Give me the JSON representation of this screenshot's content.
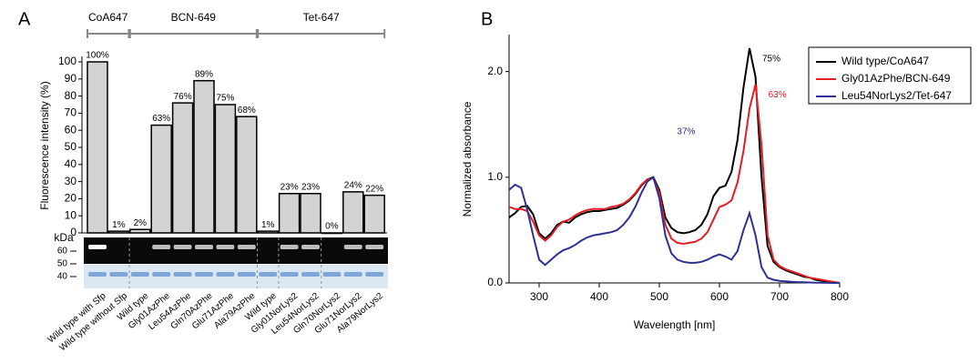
{
  "panels": [
    "A",
    "B"
  ],
  "chart_data": [
    {
      "type": "bar",
      "ylabel": "Fluorescence intensity (%)",
      "categories": [
        "Wild type with Sfp",
        "Wild type without Sfp",
        "Wild type",
        "Gly01AzPhe",
        "Leu54AzPhe",
        "Gln70AzPhe",
        "Glu71AzPhe",
        "Ala79AzPhe",
        "Wild type",
        "Gly01NorLys2",
        "Leu54NorLys2",
        "Gln70NorLys2",
        "Glu71NorLys2",
        "Ala79NorLys2"
      ],
      "values": [
        100,
        1,
        2,
        63,
        76,
        89,
        75,
        68,
        1,
        23,
        23,
        0,
        24,
        22
      ],
      "value_labels": [
        "100%",
        "1%",
        "2%",
        "63%",
        "76%",
        "89%",
        "75%",
        "68%",
        "1%",
        "23%",
        "23%",
        "0%",
        "24%",
        "22%"
      ],
      "color": "#d3d3d3",
      "groups": [
        {
          "label": "CoA647",
          "start": 0,
          "end": 1
        },
        {
          "label": "BCN-649",
          "start": 2,
          "end": 7
        },
        {
          "label": "Tet-647",
          "start": 8,
          "end": 13
        }
      ],
      "ylim": [
        0,
        100
      ],
      "yticks": [
        0,
        10,
        20,
        30,
        40,
        50,
        60,
        70,
        80,
        90,
        100
      ],
      "gel_unit": "kDa",
      "gel_markers": [
        60,
        50,
        40
      ]
    },
    {
      "type": "line",
      "xlabel": "Wavelength [nm]",
      "ylabel": "Normalized absorbance",
      "x": [
        250,
        260,
        270,
        280,
        290,
        300,
        310,
        320,
        330,
        340,
        350,
        360,
        370,
        380,
        390,
        400,
        410,
        420,
        430,
        440,
        450,
        460,
        470,
        480,
        490,
        500,
        510,
        520,
        530,
        540,
        550,
        560,
        570,
        580,
        590,
        600,
        610,
        620,
        630,
        640,
        650,
        660,
        670,
        680,
        690,
        700,
        710,
        720,
        730,
        740,
        750,
        760,
        770,
        780,
        790,
        800
      ],
      "series": [
        {
          "name": "Wild type/CoA647",
          "color": "#000000",
          "peak_label": "75%",
          "values": [
            0.62,
            0.66,
            0.72,
            0.73,
            0.65,
            0.47,
            0.42,
            0.47,
            0.55,
            0.58,
            0.57,
            0.62,
            0.65,
            0.67,
            0.68,
            0.68,
            0.69,
            0.7,
            0.71,
            0.74,
            0.78,
            0.84,
            0.92,
            0.98,
            1.0,
            0.88,
            0.62,
            0.52,
            0.48,
            0.47,
            0.48,
            0.5,
            0.55,
            0.65,
            0.82,
            0.9,
            0.92,
            1.05,
            1.35,
            1.85,
            2.22,
            1.95,
            1.0,
            0.35,
            0.2,
            0.15,
            0.12,
            0.1,
            0.08,
            0.06,
            0.05,
            0.03,
            0.02,
            0.01,
            0.005,
            0.0
          ]
        },
        {
          "name": "Gly01AzPhe/BCN-649",
          "color": "#e31e24",
          "peak_label": "63%",
          "values": [
            0.72,
            0.7,
            0.7,
            0.68,
            0.58,
            0.45,
            0.4,
            0.45,
            0.53,
            0.58,
            0.6,
            0.64,
            0.67,
            0.69,
            0.7,
            0.7,
            0.7,
            0.72,
            0.73,
            0.75,
            0.79,
            0.85,
            0.93,
            0.98,
            0.99,
            0.85,
            0.55,
            0.42,
            0.38,
            0.37,
            0.38,
            0.39,
            0.42,
            0.48,
            0.6,
            0.72,
            0.74,
            0.78,
            0.95,
            1.25,
            1.65,
            1.88,
            1.3,
            0.45,
            0.22,
            0.16,
            0.13,
            0.11,
            0.09,
            0.07,
            0.05,
            0.04,
            0.03,
            0.02,
            0.01,
            0.0
          ]
        },
        {
          "name": "Leu54NorLys2/Tet-647",
          "color": "#2e3192",
          "peak_label": "37%",
          "values": [
            0.88,
            0.93,
            0.9,
            0.7,
            0.45,
            0.22,
            0.17,
            0.22,
            0.27,
            0.31,
            0.33,
            0.36,
            0.4,
            0.43,
            0.45,
            0.46,
            0.47,
            0.48,
            0.5,
            0.55,
            0.62,
            0.72,
            0.85,
            0.96,
            1.0,
            0.8,
            0.45,
            0.28,
            0.22,
            0.2,
            0.19,
            0.19,
            0.2,
            0.22,
            0.25,
            0.27,
            0.25,
            0.22,
            0.3,
            0.5,
            0.66,
            0.45,
            0.15,
            0.05,
            0.03,
            0.02,
            0.015,
            0.01,
            0.008,
            0.006,
            0.004,
            0.003,
            0.002,
            0.001,
            0.0,
            0.0
          ]
        }
      ],
      "xlim": [
        250,
        800
      ],
      "xticks": [
        300,
        400,
        500,
        600,
        700,
        800
      ],
      "ylim": [
        0,
        2.35
      ],
      "yticks": [
        {
          "value": 0,
          "label": "0.0"
        },
        {
          "value": 1,
          "label": "1.0"
        },
        {
          "value": 2,
          "label": "2.0"
        }
      ],
      "legend": "upper right"
    }
  ]
}
